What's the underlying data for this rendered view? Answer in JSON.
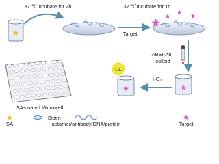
{
  "steps": {
    "incubate_1": "37 ℃Incubate for 2h",
    "incubate_2": "37 ℃Incubate for 1h",
    "target_label": "Target",
    "reagent_line1": "ABEI-Au",
    "reagent_line2": "colloid",
    "signal": "CL",
    "oxidant": "H₂O₂",
    "plate": "SA-coated Microwell"
  },
  "legend": {
    "sa": "SA",
    "biotin": "Biotin",
    "probe": "aptamer/antibody/DNA/protein",
    "target": "Target"
  }
}
